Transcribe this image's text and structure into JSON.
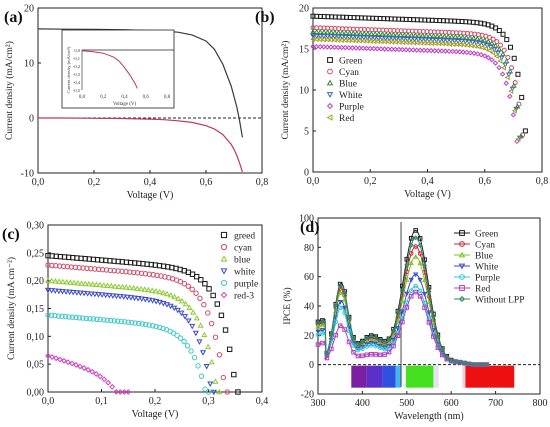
{
  "chart_data": [
    {
      "type": "line",
      "panel_label": "(a)",
      "xlabel": "Voltage (V)",
      "ylabel": "Current density (mA/cm²)",
      "xlim": [
        0.0,
        0.8
      ],
      "ylim": [
        -10,
        20
      ],
      "xticks": [
        "0,0",
        "0,2",
        "0,4",
        "0,6",
        "0,8"
      ],
      "yticks": [
        "-10",
        "0",
        "10",
        "20"
      ],
      "series": [
        {
          "color": "#3a3a3a",
          "x": [
            0.0,
            0.1,
            0.2,
            0.3,
            0.4,
            0.45,
            0.5,
            0.55,
            0.6,
            0.63,
            0.66,
            0.69,
            0.71,
            0.72,
            0.73
          ],
          "y": [
            16.2,
            16.15,
            16.1,
            16.05,
            15.9,
            15.8,
            15.6,
            15.1,
            14.0,
            12.5,
            9.8,
            5.8,
            2.0,
            -0.5,
            -3.5
          ]
        },
        {
          "color": "#c0394f",
          "x": [
            0.0,
            0.1,
            0.2,
            0.3,
            0.4,
            0.45,
            0.5,
            0.55,
            0.6,
            0.63,
            0.66,
            0.69,
            0.7,
            0.71,
            0.72,
            0.73
          ],
          "y": [
            0.0,
            0.0,
            -0.05,
            -0.1,
            -0.2,
            -0.3,
            -0.5,
            -0.8,
            -1.4,
            -2.0,
            -3.0,
            -4.8,
            -5.7,
            -6.8,
            -8.2,
            -9.8
          ]
        }
      ],
      "reference_line_y": 0,
      "inset": {
        "xlabel": "Voltage (V)",
        "ylabel": "Current density (mA/cm²)",
        "xlim": [
          0.0,
          0.8
        ],
        "ylim": [
          -0.5,
          0.0
        ],
        "xticks": [
          "0,0",
          "0,2",
          "0,4",
          "0,6",
          "0,8"
        ],
        "yticks": [
          "0,0",
          "-0,1",
          "-0,2",
          "-0,3",
          "-0,4",
          "-0,5"
        ],
        "series": [
          {
            "color": "#c0394f",
            "x": [
              0.0,
              0.1,
              0.2,
              0.3,
              0.35,
              0.4,
              0.45,
              0.5,
              0.52
            ],
            "y": [
              -0.01,
              -0.02,
              -0.04,
              -0.09,
              -0.14,
              -0.22,
              -0.31,
              -0.42,
              -0.48
            ]
          }
        ]
      }
    },
    {
      "type": "scatter",
      "panel_label": "(b)",
      "xlabel": "Voltage (V)",
      "ylabel": "Current density (mA/cm²)",
      "xlim": [
        0.0,
        0.8
      ],
      "ylim": [
        0,
        20
      ],
      "xticks": [
        "0,0",
        "0,2",
        "0,4",
        "0,6",
        "0,8"
      ],
      "yticks": [
        "0",
        "5",
        "10",
        "15",
        "20"
      ],
      "legend_position": "center-left",
      "series": [
        {
          "name": "Green",
          "color": "#1a1a1a",
          "marker": "square",
          "jsc": 19.0,
          "voc": 0.755,
          "knee": 0.6
        },
        {
          "name": "Cyan",
          "color": "#d04a66",
          "marker": "circle",
          "jsc": 17.6,
          "voc": 0.745,
          "knee": 0.59
        },
        {
          "name": "Blue",
          "color": "#2e8b3a",
          "marker": "triangle",
          "jsc": 17.1,
          "voc": 0.74,
          "knee": 0.58
        },
        {
          "name": "White",
          "color": "#3a63c8",
          "marker": "tri-down",
          "jsc": 16.6,
          "voc": 0.735,
          "knee": 0.58
        },
        {
          "name": "Purple",
          "color": "#c040c8",
          "marker": "diamond",
          "jsc": 15.3,
          "voc": 0.725,
          "knee": 0.57
        },
        {
          "name": "Red",
          "color": "#a0a020",
          "marker": "tri-left",
          "jsc": 16.2,
          "voc": 0.73,
          "knee": 0.58
        }
      ]
    },
    {
      "type": "scatter",
      "panel_label": "(c)",
      "xlabel": "Voltage (V)",
      "ylabel": "Current density (mA cm⁻²)",
      "xlim": [
        0.0,
        0.4
      ],
      "ylim": [
        0.0,
        0.3
      ],
      "xticks": [
        "0,0",
        "0,1",
        "0,2",
        "0,3",
        "0,4"
      ],
      "yticks": [
        "0,00",
        "0,05",
        "0,10",
        "0,15",
        "0,20",
        "0,25",
        "0,30"
      ],
      "legend_position": "top-right",
      "series": [
        {
          "name": "greed",
          "color": "#1a1a1a",
          "marker": "square",
          "jsc": 0.245,
          "voc": 0.355
        },
        {
          "name": "cyan",
          "color": "#d04a66",
          "marker": "circle",
          "jsc": 0.228,
          "voc": 0.335
        },
        {
          "name": "blue",
          "color": "#8ccc30",
          "marker": "triangle",
          "jsc": 0.2,
          "voc": 0.32
        },
        {
          "name": "white",
          "color": "#3a4ac8",
          "marker": "tri-down",
          "jsc": 0.183,
          "voc": 0.31
        },
        {
          "name": "purple",
          "color": "#40c8c8",
          "marker": "circle",
          "jsc": 0.138,
          "voc": 0.3
        },
        {
          "name": "red-3",
          "color": "#d040c0",
          "marker": "diamond",
          "jsc": 0.065,
          "voc": 0.15
        }
      ]
    },
    {
      "type": "line",
      "panel_label": "(d)",
      "xlabel": "Wavelength (nm)",
      "ylabel": "IPCE (%)",
      "xlim": [
        300,
        800
      ],
      "ylim": [
        -20,
        100
      ],
      "xticks": [
        "300",
        "400",
        "500",
        "600",
        "700",
        "800"
      ],
      "yticks": [
        "-20",
        "0",
        "20",
        "40",
        "60",
        "80",
        "100"
      ],
      "legend_position": "top-right",
      "reference_line_y": 0,
      "reference_line_x": 487,
      "series": [
        {
          "name": "Green",
          "color": "#1a1a1a",
          "marker": "square",
          "peak": 90,
          "dip": 33,
          "shoulder": 53
        },
        {
          "name": "Cyan",
          "color": "#d02030",
          "marker": "circle",
          "peak": 79,
          "dip": 30,
          "shoulder": 50
        },
        {
          "name": "Blue",
          "color": "#7cc520",
          "marker": "triangle",
          "peak": 72,
          "dip": 27,
          "shoulder": 47
        },
        {
          "name": "White",
          "color": "#3a4ac8",
          "marker": "tri-down",
          "peak": 60,
          "dip": 24,
          "shoulder": 41
        },
        {
          "name": "Purple",
          "color": "#30c8d0",
          "marker": "circle",
          "peak": 52,
          "dip": 21,
          "shoulder": 37
        },
        {
          "name": "Red",
          "color": "#b040c0",
          "marker": "square",
          "peak": 48,
          "dip": 10,
          "shoulder": 25
        },
        {
          "name": "Without LPP",
          "color": "#2a8a6a",
          "marker": "diamond",
          "peak": 85,
          "dip": 32,
          "shoulder": 52
        }
      ],
      "spectrum_bands": [
        {
          "from": 375,
          "to": 410,
          "color": "#7a1fa2"
        },
        {
          "from": 410,
          "to": 445,
          "color": "#5a30c8"
        },
        {
          "from": 445,
          "to": 475,
          "color": "#3050e0"
        },
        {
          "from": 475,
          "to": 487,
          "color": "#40b8f0"
        },
        {
          "from": 487,
          "to": 498,
          "color": "#f4f4f4"
        },
        {
          "from": 498,
          "to": 560,
          "color": "#44e020"
        },
        {
          "from": 560,
          "to": 572,
          "color": "#e8e0f0"
        },
        {
          "from": 625,
          "to": 632,
          "color": "#f4d0d8"
        },
        {
          "from": 632,
          "to": 742,
          "color": "#ee1010"
        }
      ]
    }
  ]
}
